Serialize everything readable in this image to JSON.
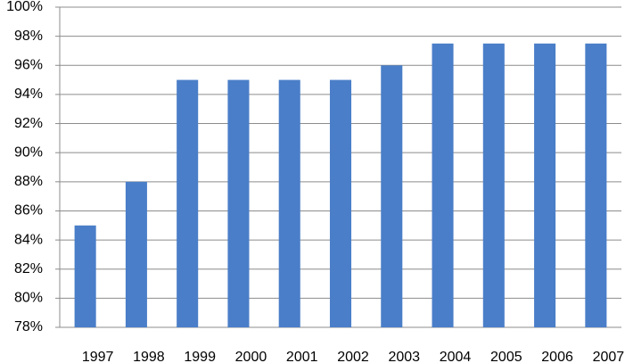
{
  "chart_data": {
    "type": "bar",
    "categories": [
      "1997",
      "1998",
      "1999",
      "2000",
      "2001",
      "2002",
      "2003",
      "2004",
      "2005",
      "2006",
      "2007"
    ],
    "values": [
      85,
      88,
      95,
      95,
      95,
      95,
      96,
      97.5,
      97.5,
      97.5,
      97.5
    ],
    "color": "#4a7ec8",
    "ylim": [
      78,
      100
    ],
    "yticks": [
      {
        "value": 78,
        "label": "78%"
      },
      {
        "value": 80,
        "label": "80%"
      },
      {
        "value": 82,
        "label": "82%"
      },
      {
        "value": 84,
        "label": "84%"
      },
      {
        "value": 86,
        "label": "86%"
      },
      {
        "value": 88,
        "label": "88%"
      },
      {
        "value": 90,
        "label": "90%"
      },
      {
        "value": 92,
        "label": "92%"
      },
      {
        "value": 94,
        "label": "94%"
      },
      {
        "value": 96,
        "label": "96%"
      },
      {
        "value": 98,
        "label": "98%"
      },
      {
        "value": 100,
        "label": "100%"
      }
    ],
    "grid": true
  }
}
